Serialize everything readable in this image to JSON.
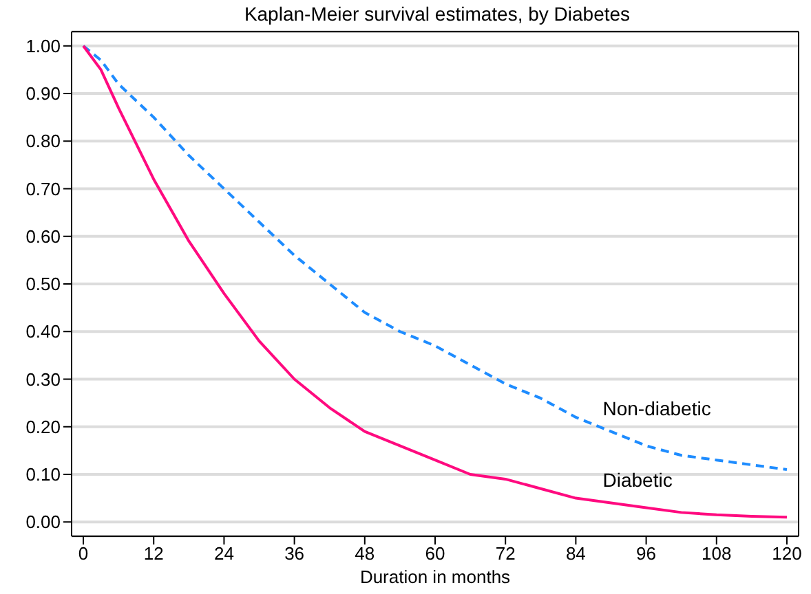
{
  "chart_data": {
    "type": "line",
    "title": "Kaplan-Meier survival estimates, by Diabetes",
    "xlabel": "Duration in months",
    "x": [
      0,
      3,
      6,
      12,
      18,
      24,
      30,
      36,
      42,
      48,
      54,
      60,
      66,
      72,
      78,
      84,
      90,
      96,
      102,
      108,
      114,
      120
    ],
    "series": [
      {
        "name": "Non-diabetic",
        "color": "#1e8cff",
        "line_style": "dashed",
        "values": [
          1.0,
          0.97,
          0.92,
          0.85,
          0.77,
          0.7,
          0.63,
          0.56,
          0.5,
          0.44,
          0.4,
          0.37,
          0.33,
          0.29,
          0.26,
          0.22,
          0.19,
          0.16,
          0.14,
          0.13,
          0.12,
          0.11
        ]
      },
      {
        "name": "Diabetic",
        "color": "#ff0a7f",
        "line_style": "solid",
        "values": [
          1.0,
          0.95,
          0.87,
          0.72,
          0.59,
          0.48,
          0.38,
          0.3,
          0.24,
          0.19,
          0.16,
          0.13,
          0.1,
          0.09,
          0.07,
          0.05,
          0.04,
          0.03,
          0.02,
          0.015,
          0.012,
          0.01
        ]
      }
    ],
    "xlim": [
      -2,
      122
    ],
    "xticks": [
      0,
      12,
      24,
      36,
      48,
      60,
      72,
      84,
      96,
      108,
      120
    ],
    "ylim": [
      -0.03,
      1.03
    ],
    "yticks": [
      {
        "value": 0,
        "label": "0.00"
      },
      {
        "value": 0.1,
        "label": "0.10"
      },
      {
        "value": 0.2,
        "label": "0.20"
      },
      {
        "value": 0.3,
        "label": "0.30"
      },
      {
        "value": 0.4,
        "label": "0.40"
      },
      {
        "value": 0.5,
        "label": "0.50"
      },
      {
        "value": 0.6,
        "label": "0.60"
      },
      {
        "value": 0.7,
        "label": "0.70"
      },
      {
        "value": 0.8,
        "label": "0.80"
      },
      {
        "value": 0.9,
        "label": "0.90"
      },
      {
        "value": 1.0,
        "label": "1.00"
      }
    ],
    "grid": "y",
    "legend": false,
    "marker": "none"
  }
}
